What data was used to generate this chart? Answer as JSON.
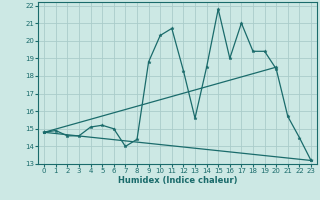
{
  "title": "",
  "xlabel": "Humidex (Indice chaleur)",
  "bg_color": "#cce8e4",
  "grid_color": "#aaccca",
  "line_color": "#1a6b6b",
  "xlim": [
    -0.5,
    23.5
  ],
  "ylim": [
    13,
    22.2
  ],
  "xticks": [
    0,
    1,
    2,
    3,
    4,
    5,
    6,
    7,
    8,
    9,
    10,
    11,
    12,
    13,
    14,
    15,
    16,
    17,
    18,
    19,
    20,
    21,
    22,
    23
  ],
  "yticks": [
    13,
    14,
    15,
    16,
    17,
    18,
    19,
    20,
    21,
    22
  ],
  "line1_x": [
    0,
    1,
    2,
    3,
    4,
    5,
    6,
    7,
    8,
    9,
    10,
    11,
    12,
    13,
    14,
    15,
    16,
    17,
    18,
    19,
    20,
    21,
    22,
    23
  ],
  "line1_y": [
    14.8,
    14.9,
    14.6,
    14.6,
    15.1,
    15.2,
    15.0,
    14.0,
    14.4,
    18.8,
    20.3,
    20.7,
    18.3,
    15.6,
    18.5,
    21.8,
    19.0,
    21.0,
    19.4,
    19.4,
    18.4,
    15.7,
    14.5,
    13.2
  ],
  "line2_x": [
    0,
    20
  ],
  "line2_y": [
    14.8,
    18.5
  ],
  "line3_x": [
    0,
    23
  ],
  "line3_y": [
    14.8,
    13.2
  ],
  "xlabel_fontsize": 6,
  "tick_fontsize": 5
}
